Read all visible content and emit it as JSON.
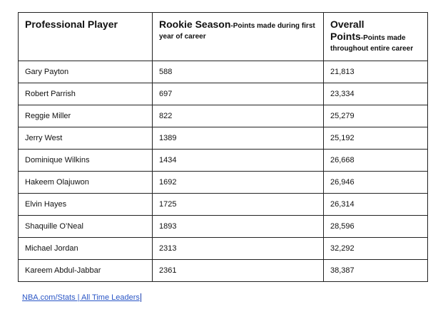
{
  "table": {
    "headers": {
      "player": "Professional Player",
      "rookie_main": "Rookie Season",
      "rookie_detail": "-Points made during first year of career",
      "overall_main_1": "Overall",
      "overall_main_2": "Points",
      "overall_detail": "-Points made throughout entire career"
    },
    "rows": [
      {
        "player": "Gary Payton",
        "rookie": "588",
        "overall": "21,813"
      },
      {
        "player": "Robert Parrish",
        "rookie": "697",
        "overall": "23,334"
      },
      {
        "player": "Reggie Miller",
        "rookie": "822",
        "overall": "25,279"
      },
      {
        "player": "Jerry West",
        "rookie": "1389",
        "overall": "25,192"
      },
      {
        "player": "Dominique Wilkins",
        "rookie": "1434",
        "overall": "26,668"
      },
      {
        "player": "Hakeem Olajuwon",
        "rookie": "1692",
        "overall": "26,946"
      },
      {
        "player": "Elvin Hayes",
        "rookie": "1725",
        "overall": "26,314"
      },
      {
        "player": "Shaquille O’Neal",
        "rookie": "1893",
        "overall": "28,596"
      },
      {
        "player": "Michael Jordan",
        "rookie": "2313",
        "overall": "32,292"
      },
      {
        "player": "Kareem Abdul-Jabbar",
        "rookie": "2361",
        "overall": "38,387"
      }
    ]
  },
  "source": {
    "label": "NBA.com/Stats | All Time Leaders"
  }
}
